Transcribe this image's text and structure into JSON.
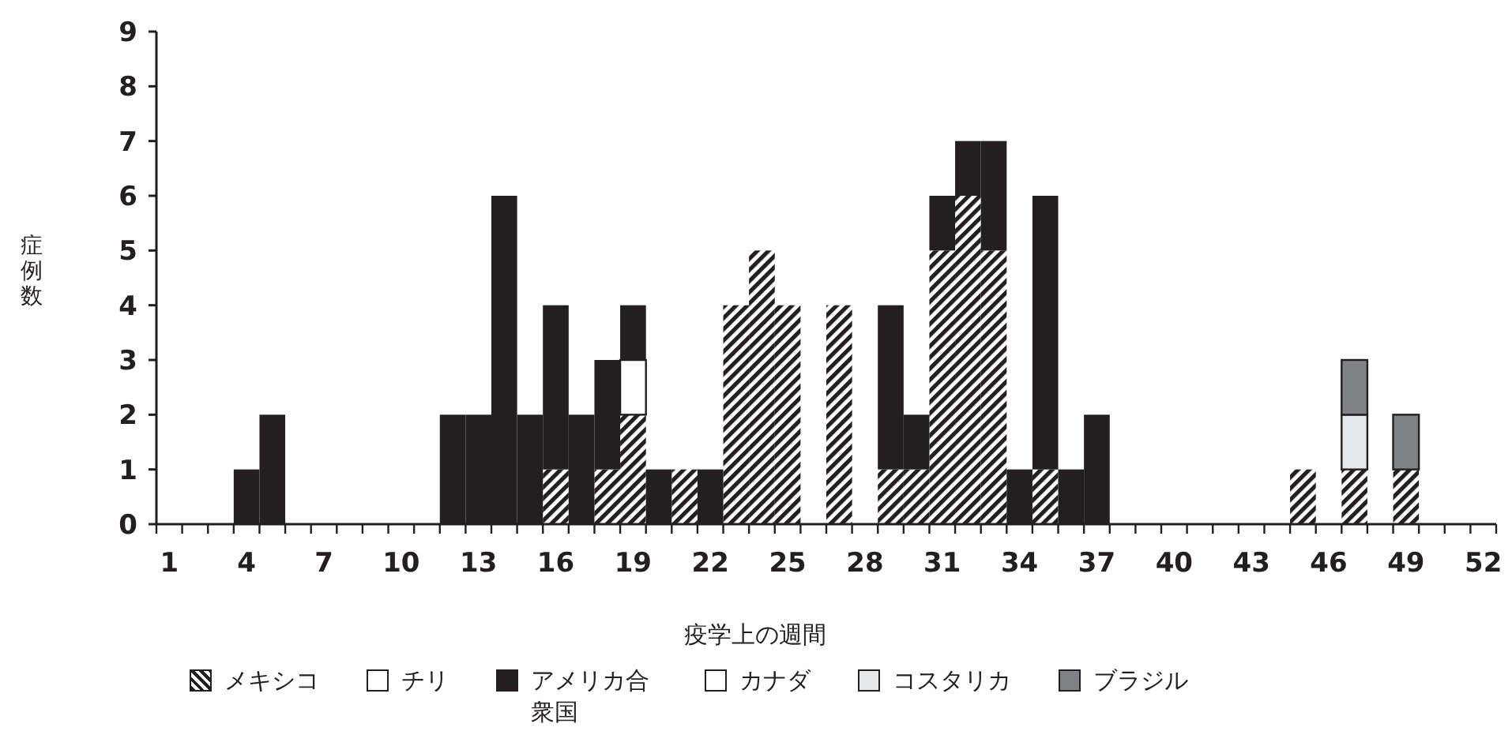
{
  "chart_data": {
    "type": "bar",
    "stacked": true,
    "xlabel": "疫学上の週間",
    "ylabel": "症例数",
    "categories": [
      "1",
      null,
      null,
      "4",
      null,
      null,
      "7",
      null,
      null,
      "10",
      null,
      null,
      "13",
      null,
      null,
      "16",
      null,
      null,
      "19",
      null,
      null,
      "22",
      null,
      null,
      "25",
      null,
      null,
      "28",
      null,
      null,
      "31",
      null,
      null,
      "34",
      null,
      null,
      "37",
      null,
      null,
      "40",
      null,
      null,
      "43",
      null,
      null,
      "46",
      null,
      null,
      "49",
      null,
      null,
      "52"
    ],
    "series": [
      {
        "name": "メキシコ",
        "color": "#231f20",
        "values": [
          0,
          0,
          0,
          0,
          0,
          0,
          0,
          0,
          0,
          0,
          0,
          0,
          0,
          0,
          0,
          1,
          0,
          1,
          2,
          0,
          1,
          0,
          4,
          5,
          4,
          0,
          4,
          0,
          1,
          1,
          5,
          6,
          5,
          0,
          1,
          0,
          0,
          0,
          0,
          0,
          0,
          0,
          0,
          0,
          1,
          0,
          1,
          0,
          1,
          0,
          0,
          0
        ]
      },
      {
        "name": "チリ",
        "color": "#ffffff",
        "values": [
          0,
          0,
          0,
          0,
          0,
          0,
          0,
          0,
          0,
          0,
          0,
          0,
          0,
          0,
          0,
          0,
          0,
          0,
          1,
          0,
          0,
          0,
          0,
          0,
          0,
          0,
          0,
          0,
          0,
          0,
          0,
          0,
          0,
          0,
          0,
          0,
          0,
          0,
          0,
          0,
          0,
          0,
          0,
          0,
          0,
          0,
          0,
          0,
          0,
          0,
          0,
          0
        ]
      },
      {
        "name": "アメリカ合衆国",
        "color": "#231f20",
        "values": [
          0,
          0,
          0,
          1,
          2,
          0,
          0,
          0,
          0,
          0,
          0,
          2,
          2,
          6,
          2,
          3,
          2,
          2,
          1,
          1,
          0,
          1,
          0,
          0,
          0,
          0,
          0,
          0,
          3,
          1,
          1,
          1,
          2,
          1,
          5,
          1,
          2,
          0,
          0,
          0,
          0,
          0,
          0,
          0,
          0,
          0,
          0,
          0,
          0,
          0,
          0,
          0
        ]
      },
      {
        "name": "カナダ",
        "color": "#ffffff",
        "values": [
          0,
          0,
          0,
          0,
          0,
          0,
          0,
          0,
          0,
          0,
          0,
          0,
          0,
          0,
          0,
          0,
          0,
          0,
          0,
          0,
          0,
          0,
          0,
          0,
          0,
          0,
          0,
          0,
          0,
          0,
          0,
          0,
          0,
          0,
          0,
          0,
          0,
          0,
          0,
          0,
          0,
          0,
          0,
          0,
          0,
          0,
          0,
          0,
          0,
          0,
          0,
          0
        ]
      },
      {
        "name": "コスタリカ",
        "color": "#e6e7e8",
        "values": [
          0,
          0,
          0,
          0,
          0,
          0,
          0,
          0,
          0,
          0,
          0,
          0,
          0,
          0,
          0,
          0,
          0,
          0,
          0,
          0,
          0,
          0,
          0,
          0,
          0,
          0,
          0,
          0,
          0,
          0,
          0,
          0,
          0,
          0,
          0,
          0,
          0,
          0,
          0,
          0,
          0,
          0,
          0,
          0,
          0,
          0,
          1,
          0,
          0,
          0,
          0,
          0
        ]
      },
      {
        "name": "ブラジル",
        "color": "#808285",
        "values": [
          0,
          0,
          0,
          0,
          0,
          0,
          0,
          0,
          0,
          0,
          0,
          0,
          0,
          0,
          0,
          0,
          0,
          0,
          0,
          0,
          0,
          0,
          0,
          0,
          0,
          0,
          0,
          0,
          0,
          0,
          0,
          0,
          0,
          0,
          0,
          0,
          0,
          0,
          0,
          0,
          0,
          0,
          0,
          0,
          0,
          0,
          1,
          0,
          1,
          0,
          0,
          0
        ]
      }
    ],
    "ylim": [
      0,
      9
    ],
    "yticks": [
      0,
      1,
      2,
      3,
      4,
      5,
      6,
      7,
      8,
      9
    ],
    "legend": "bottom"
  }
}
